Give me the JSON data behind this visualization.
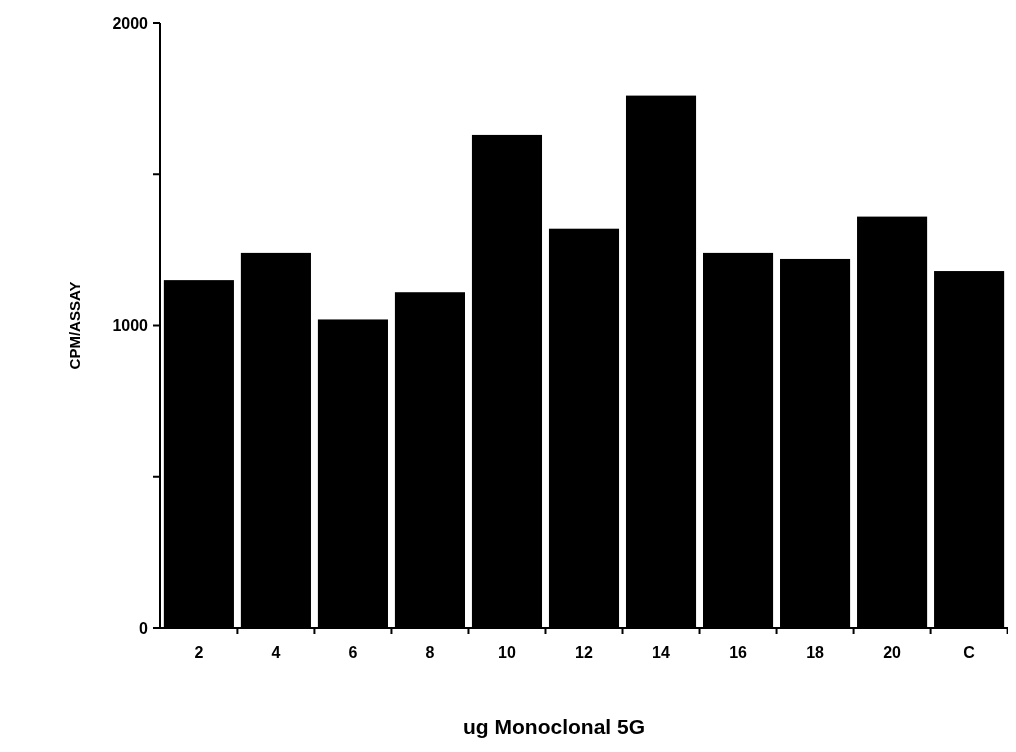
{
  "chart_data": {
    "type": "bar",
    "xlabel": "ug Monoclonal 5G",
    "ylabel": "CPM/ASSAY",
    "categories": [
      "2",
      "4",
      "6",
      "8",
      "10",
      "12",
      "14",
      "16",
      "18",
      "20",
      "C"
    ],
    "values": [
      1150,
      1240,
      1020,
      1110,
      1630,
      1320,
      1760,
      1240,
      1220,
      1360,
      1180
    ],
    "color": "#000000",
    "ylim": [
      0,
      2000
    ],
    "yticks": [
      0,
      {
        "value": 500,
        "label": null
      },
      1000,
      {
        "value": 1500,
        "label": null
      },
      2000
    ],
    "grid": false
  }
}
